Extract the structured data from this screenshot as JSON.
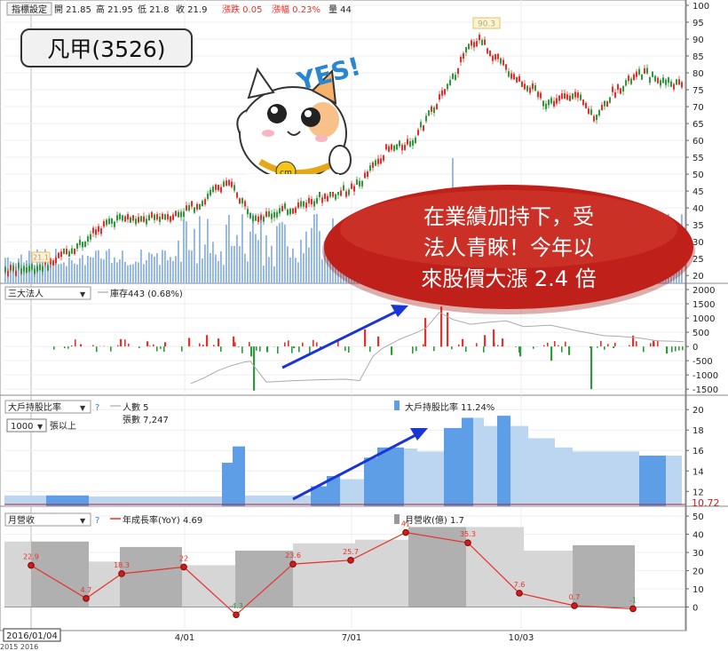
{
  "header": {
    "settings_button": "指標設定",
    "open": "開 21.85",
    "high": "高 21.95",
    "low": "低 21.8",
    "close": "收 21.9",
    "change": "漲跌 0.05",
    "pct_change": "漲幅 0.23%",
    "volume": "量 44"
  },
  "stock_title": "凡甲(3526)",
  "sticker_text": "YES!",
  "callout_lines": [
    "在業績加持下，受",
    "法人青睞！今年以",
    "來股價大漲 2.4 倍"
  ],
  "panels": {
    "institutional": {
      "dropdown": "三大法人",
      "legend": "庫存443 (0.68%)"
    },
    "holders": {
      "dropdown": "大戶持股比率",
      "help": "?",
      "legend_people": "人數 5",
      "legend_shares": "張數 7,247",
      "legend_ratio": "大戶持股比率 11.24%",
      "threshold": "1000",
      "threshold_unit": "張以上",
      "last_value": "10.72"
    },
    "revenue": {
      "dropdown": "月營收",
      "help": "?",
      "legend_yoy": "年成長率(YoY) 4.69",
      "legend_rev": "月營收(億) 1.7"
    }
  },
  "date_box": "2016/01/04",
  "date_box_sub": "2015 2016",
  "colors": {
    "up": "#e8302a",
    "down": "#2f9a3a",
    "volume": "#8db4e2",
    "holders_light": "#bcd6f2",
    "holders_dark": "#5d9ee6",
    "arrow": "#1a35d6",
    "callout": "#c0201a"
  },
  "chart_data": [
    {
      "type": "candlestick",
      "title": "凡甲(3526)",
      "y_ticks": [
        20,
        25,
        30,
        35,
        40,
        45,
        50,
        55,
        60,
        65,
        70,
        75,
        80,
        85,
        90,
        95,
        100
      ],
      "ylim": [
        18.2,
        100
      ],
      "x_ticks": [
        "4/01",
        "7/01",
        "10/03"
      ],
      "annotations": [
        "21.1",
        "90.3"
      ],
      "price_path": [
        [
          0,
          21.5
        ],
        [
          25,
          21.8
        ],
        [
          45,
          22.5
        ],
        [
          60,
          24
        ],
        [
          75,
          27
        ],
        [
          95,
          30
        ],
        [
          110,
          33.5
        ],
        [
          125,
          36
        ],
        [
          140,
          37
        ],
        [
          160,
          36
        ],
        [
          180,
          37.5
        ],
        [
          200,
          38
        ],
        [
          215,
          40
        ],
        [
          230,
          42
        ],
        [
          245,
          46
        ],
        [
          255,
          47.5
        ],
        [
          265,
          45
        ],
        [
          275,
          41
        ],
        [
          285,
          38
        ],
        [
          300,
          37.5
        ],
        [
          315,
          39
        ],
        [
          330,
          40
        ],
        [
          345,
          41.5
        ],
        [
          360,
          43
        ],
        [
          375,
          44
        ],
        [
          390,
          45
        ],
        [
          405,
          47
        ],
        [
          420,
          52
        ],
        [
          435,
          57
        ],
        [
          450,
          58
        ],
        [
          465,
          60
        ],
        [
          480,
          66
        ],
        [
          495,
          72
        ],
        [
          510,
          78
        ],
        [
          520,
          84
        ],
        [
          530,
          88
        ],
        [
          540,
          90.3
        ],
        [
          550,
          87
        ],
        [
          560,
          84
        ],
        [
          575,
          80
        ],
        [
          590,
          77
        ],
        [
          605,
          74
        ],
        [
          615,
          71
        ],
        [
          630,
          72
        ],
        [
          645,
          74
        ],
        [
          660,
          70
        ],
        [
          670,
          67
        ],
        [
          680,
          70
        ],
        [
          690,
          74
        ],
        [
          700,
          76
        ],
        [
          712,
          78
        ],
        [
          725,
          80
        ],
        [
          740,
          78
        ],
        [
          755,
          77
        ],
        [
          770,
          76
        ]
      ],
      "volume_spikes": [
        [
          230,
          260
        ],
        [
          245,
          248
        ],
        [
          510,
          178
        ],
        [
          480,
          218
        ],
        [
          700,
          220
        ],
        [
          455,
          230
        ]
      ]
    },
    {
      "type": "bar",
      "title": "三大法人",
      "series": [
        {
          "name": "庫存",
          "values": [
            443
          ]
        }
      ],
      "y_ticks": [
        2000,
        1500,
        1000,
        500,
        0,
        -500,
        -1000,
        -1500
      ],
      "ylim": [
        -1650,
        2000
      ],
      "bars": [
        [
          90,
          80
        ],
        [
          135,
          260
        ],
        [
          165,
          180
        ],
        [
          185,
          150
        ],
        [
          212,
          300
        ],
        [
          232,
          400
        ],
        [
          245,
          280
        ],
        [
          262,
          350
        ],
        [
          282,
          -350
        ],
        [
          285,
          -1550
        ],
        [
          300,
          -200
        ],
        [
          330,
          -60
        ],
        [
          360,
          -100
        ],
        [
          410,
          600
        ],
        [
          425,
          350
        ],
        [
          440,
          -300
        ],
        [
          478,
          1000
        ],
        [
          496,
          1400
        ],
        [
          503,
          1200
        ],
        [
          520,
          260
        ],
        [
          545,
          400
        ],
        [
          555,
          600
        ],
        [
          565,
          280
        ],
        [
          585,
          -350
        ],
        [
          620,
          -500
        ],
        [
          640,
          -300
        ],
        [
          665,
          -1500
        ],
        [
          690,
          -60
        ],
        [
          712,
          380
        ],
        [
          735,
          200
        ],
        [
          750,
          -250
        ]
      ],
      "inventory_line": [
        [
          215,
          -1300
        ],
        [
          230,
          -1100
        ],
        [
          245,
          -850
        ],
        [
          260,
          -680
        ],
        [
          275,
          -550
        ],
        [
          282,
          -520
        ],
        [
          300,
          -1250
        ],
        [
          330,
          -1200
        ],
        [
          360,
          -1170
        ],
        [
          390,
          -1150
        ],
        [
          405,
          -1200
        ],
        [
          420,
          -350
        ],
        [
          430,
          -80
        ],
        [
          450,
          250
        ],
        [
          470,
          500
        ],
        [
          480,
          650
        ],
        [
          495,
          1200
        ],
        [
          510,
          950
        ],
        [
          530,
          780
        ],
        [
          550,
          850
        ],
        [
          570,
          900
        ],
        [
          590,
          700
        ],
        [
          620,
          750
        ],
        [
          650,
          550
        ],
        [
          680,
          380
        ],
        [
          700,
          350
        ],
        [
          720,
          300
        ],
        [
          740,
          200
        ],
        [
          760,
          180
        ],
        [
          770,
          170
        ]
      ]
    },
    {
      "type": "bar",
      "title": "大戶持股比率",
      "series": [
        {
          "name": "大戶持股比率",
          "values": [
            11.24
          ]
        }
      ],
      "y_ticks": [
        12,
        14,
        16,
        18,
        20
      ],
      "ylim": [
        10.72,
        20.8
      ],
      "steps": [
        [
          5,
          52,
          11.6,
          0
        ],
        [
          52,
          100,
          11.6,
          1
        ],
        [
          100,
          250,
          11.5,
          0
        ],
        [
          250,
          262,
          14.8,
          1
        ],
        [
          262,
          276,
          16.4,
          1
        ],
        [
          276,
          350,
          11.6,
          0
        ],
        [
          350,
          368,
          12.5,
          1
        ],
        [
          368,
          383,
          13.5,
          1
        ],
        [
          383,
          410,
          13.2,
          0
        ],
        [
          410,
          425,
          15.3,
          1
        ],
        [
          425,
          455,
          16.3,
          1
        ],
        [
          455,
          470,
          16.2,
          0
        ],
        [
          470,
          500,
          15.9,
          0
        ],
        [
          500,
          520,
          18.2,
          1
        ],
        [
          520,
          533,
          19.2,
          1
        ],
        [
          533,
          545,
          19.2,
          0
        ],
        [
          545,
          560,
          18.4,
          0
        ],
        [
          560,
          575,
          19.4,
          1
        ],
        [
          575,
          595,
          18.4,
          0
        ],
        [
          595,
          625,
          17.2,
          0
        ],
        [
          625,
          645,
          16.3,
          0
        ],
        [
          645,
          720,
          15.9,
          0
        ],
        [
          720,
          750,
          15.5,
          1
        ],
        [
          750,
          768,
          15.5,
          0
        ]
      ]
    },
    {
      "type": "bar",
      "title": "月營收",
      "series": [
        {
          "name": "年成長率(YoY)",
          "values": [
            22.9,
            4.7,
            18.3,
            22,
            -4.3,
            23.6,
            25.7,
            41,
            35.3,
            7.6,
            0.7,
            -1
          ]
        }
      ],
      "y_ticks": [
        0,
        10,
        20,
        30,
        40,
        50
      ],
      "ylim": [
        -12,
        52
      ],
      "bars": [
        [
          5,
          35,
          36,
          0
        ],
        [
          35,
          100,
          36,
          1
        ],
        [
          100,
          135,
          25,
          0
        ],
        [
          135,
          205,
          33,
          1
        ],
        [
          205,
          265,
          23,
          0
        ],
        [
          265,
          330,
          31,
          1
        ],
        [
          330,
          400,
          35,
          0
        ],
        [
          400,
          460,
          37,
          0
        ],
        [
          460,
          525,
          44,
          1
        ],
        [
          525,
          590,
          44,
          0
        ],
        [
          590,
          645,
          31,
          0
        ],
        [
          645,
          715,
          34,
          1
        ]
      ],
      "yoy_points": [
        [
          35,
          22.9
        ],
        [
          97,
          4.7
        ],
        [
          137,
          18.3
        ],
        [
          207,
          22
        ],
        [
          266,
          -4.3
        ],
        [
          330,
          23.6
        ],
        [
          395,
          25.7
        ],
        [
          457,
          41
        ],
        [
          527,
          35.3
        ],
        [
          585,
          7.6
        ],
        [
          647,
          0.7
        ],
        [
          713,
          -1
        ]
      ]
    }
  ]
}
